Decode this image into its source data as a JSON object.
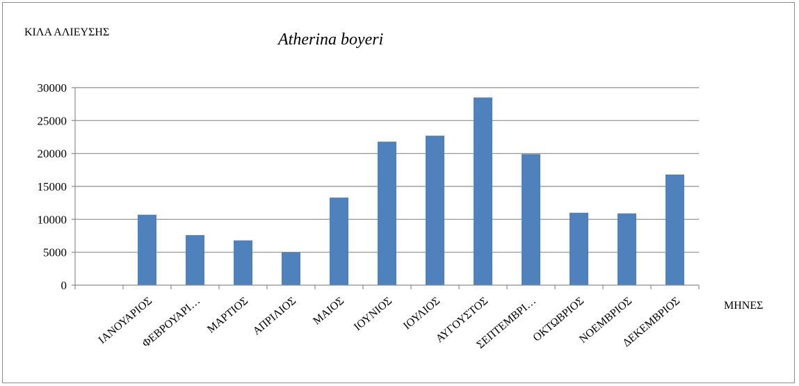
{
  "chart_data": {
    "type": "bar",
    "title": "Atherina boyeri",
    "ylabel": "ΚΙΛΑ ΑΛΙΕΥΣΗΣ",
    "xlabel": "ΜΗΝΕΣ",
    "categories": [
      "",
      "ΙΑΝΟΥΑΡΙΟΣ",
      "ΦΕΒΡΟΥΑΡΙ…",
      "ΜΑΡΤΙΟΣ",
      "ΑΠΡΙΛΙΟΣ",
      "ΜΑΙΟΣ",
      "ΙΟΥΝΙΟΣ",
      "ΙΟΥΛΙΟΣ",
      "ΑΥΓΟΥΣΤΟΣ",
      "ΣΕΠΤΕΜΒΡΙ…",
      "ΟΚΤΩΒΡΙΟΣ",
      "ΝΟΕΜΒΡΙΟΣ",
      "ΔΕΚΕΜΒΡΙΟΣ"
    ],
    "values": [
      null,
      10700,
      7600,
      6800,
      5000,
      13300,
      21800,
      22700,
      28500,
      19900,
      11000,
      10900,
      16800
    ],
    "ylim": [
      0,
      30000
    ],
    "yticks": [
      "0",
      "5000",
      "10000",
      "15000",
      "20000",
      "25000",
      "30000"
    ],
    "grid": true,
    "bar_color": "#4f81bd",
    "grid_color": "#8c8c8c"
  }
}
